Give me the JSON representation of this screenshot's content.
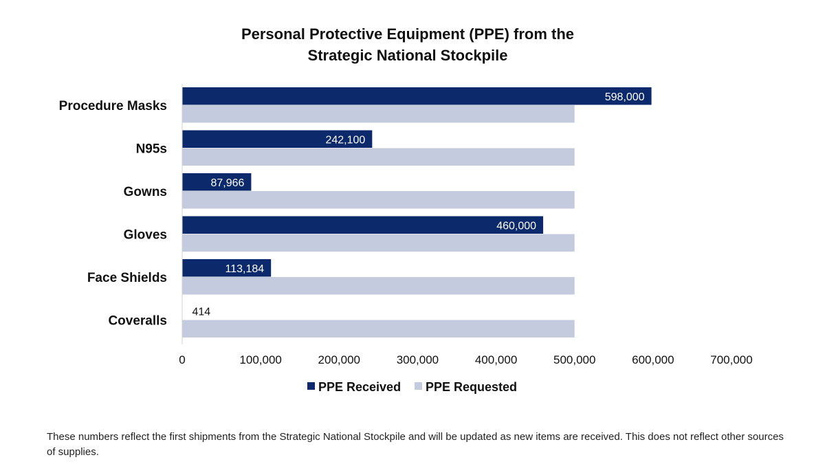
{
  "chart_data": {
    "type": "bar",
    "orientation": "horizontal",
    "title": [
      "Personal Protective Equipment (PPE) from the",
      "Strategic National Stockpile"
    ],
    "categories": [
      "Procedure Masks",
      "N95s",
      "Gowns",
      "Gloves",
      "Face Shields",
      "Coveralls"
    ],
    "series": [
      {
        "name": "PPE Received",
        "color": "#0c2a6b",
        "values": [
          598000,
          242100,
          87966,
          460000,
          113184,
          414
        ],
        "data_labels": [
          "598,000",
          "242,100",
          "87,966",
          "460,000",
          "113,184",
          "414"
        ]
      },
      {
        "name": "PPE Requested",
        "color": "#c5cbdf",
        "values": [
          500000,
          500000,
          500000,
          500000,
          500000,
          500000
        ]
      }
    ],
    "xlim": [
      0,
      700000
    ],
    "xticks": [
      0,
      100000,
      200000,
      300000,
      400000,
      500000,
      600000,
      700000
    ],
    "xtick_labels": [
      "0",
      "100,000",
      "200,000",
      "300,000",
      "400,000",
      "500,000",
      "600,000",
      "700,000"
    ],
    "xlabel": "",
    "ylabel": "",
    "grid": false,
    "legend_position": "bottom-center"
  },
  "footnote": "These numbers reflect the first shipments from the Strategic National Stockpile and will be updated as new items are received. This does not reflect other sources of supplies."
}
